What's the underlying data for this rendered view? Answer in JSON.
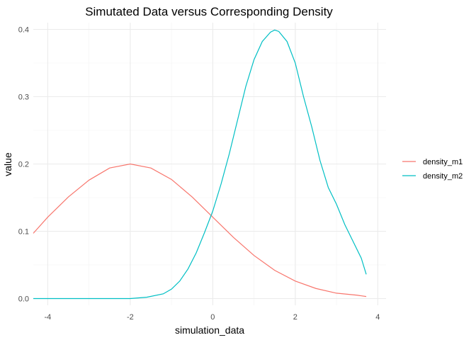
{
  "chart_data": {
    "type": "line",
    "title": "Simutated Data versus Corresponding Density",
    "xlabel": "simulation_data",
    "ylabel": "value",
    "xlim": [
      -4.35,
      4.2
    ],
    "ylim": [
      -0.01,
      0.41
    ],
    "x_ticks": [
      -4,
      -2,
      0,
      2,
      4
    ],
    "y_ticks": [
      0.0,
      0.1,
      0.2,
      0.3,
      0.4
    ],
    "x_tick_labels": [
      "-4",
      "-2",
      "0",
      "2",
      "4"
    ],
    "y_tick_labels": [
      "0.0",
      "0.1",
      "0.2",
      "0.3",
      "0.4"
    ],
    "grid": true,
    "legend_position": "right",
    "series": [
      {
        "name": "density_m1",
        "color": "#F8766D",
        "x": [
          -4.35,
          -4.0,
          -3.5,
          -3.0,
          -2.5,
          -2.0,
          -1.5,
          -1.0,
          -0.5,
          0.0,
          0.5,
          1.0,
          1.5,
          2.0,
          2.5,
          3.0,
          3.5,
          3.72
        ],
        "y": [
          0.097,
          0.121,
          0.151,
          0.176,
          0.194,
          0.2,
          0.194,
          0.177,
          0.151,
          0.121,
          0.091,
          0.064,
          0.042,
          0.026,
          0.015,
          0.008,
          0.005,
          0.003
        ]
      },
      {
        "name": "density_m2",
        "color": "#00BFC4",
        "x": [
          -4.35,
          -3.0,
          -2.0,
          -1.6,
          -1.2,
          -1.0,
          -0.8,
          -0.6,
          -0.4,
          -0.2,
          0.0,
          0.2,
          0.4,
          0.6,
          0.8,
          1.0,
          1.2,
          1.4,
          1.5,
          1.6,
          1.8,
          2.0,
          2.2,
          2.4,
          2.6,
          2.8,
          3.0,
          3.2,
          3.4,
          3.6,
          3.72
        ],
        "y": [
          0.0,
          0.0,
          0.0,
          0.002,
          0.007,
          0.014,
          0.026,
          0.044,
          0.068,
          0.098,
          0.13,
          0.17,
          0.215,
          0.265,
          0.315,
          0.355,
          0.382,
          0.396,
          0.399,
          0.397,
          0.382,
          0.35,
          0.3,
          0.255,
          0.205,
          0.165,
          0.14,
          0.11,
          0.085,
          0.06,
          0.036
        ]
      }
    ]
  }
}
